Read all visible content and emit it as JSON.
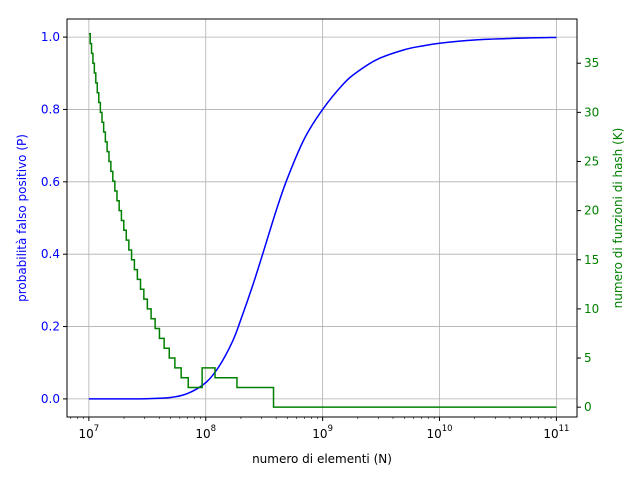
{
  "chart_data": {
    "type": "line",
    "xlabel": "numero di elementi (N)",
    "ylabel_left": "probabilità falso positivo (P)",
    "ylabel_right": "numero di funzioni di hash (K)",
    "x_scale": "log",
    "xlim": [
      6500000,
      150000000000
    ],
    "ylim_left": [
      -0.05,
      1.05
    ],
    "ylim_right": [
      -1,
      39.5
    ],
    "grid": true,
    "x_ticks": [
      {
        "value": 10000000,
        "base": "10",
        "exp": "7"
      },
      {
        "value": 100000000,
        "base": "10",
        "exp": "8"
      },
      {
        "value": 1000000000,
        "base": "10",
        "exp": "9"
      },
      {
        "value": 10000000000,
        "base": "10",
        "exp": "10"
      },
      {
        "value": 100000000000,
        "base": "10",
        "exp": "11"
      }
    ],
    "y_ticks_left": [
      {
        "value": 0.0,
        "label": "0.0"
      },
      {
        "value": 0.2,
        "label": "0.2"
      },
      {
        "value": 0.4,
        "label": "0.4"
      },
      {
        "value": 0.6,
        "label": "0.6"
      },
      {
        "value": 0.8,
        "label": "0.8"
      },
      {
        "value": 1.0,
        "label": "1.0"
      }
    ],
    "y_ticks_right": [
      {
        "value": 0,
        "label": "0"
      },
      {
        "value": 5,
        "label": "5"
      },
      {
        "value": 10,
        "label": "10"
      },
      {
        "value": 15,
        "label": "15"
      },
      {
        "value": 20,
        "label": "20"
      },
      {
        "value": 25,
        "label": "25"
      },
      {
        "value": 30,
        "label": "30"
      },
      {
        "value": 35,
        "label": "35"
      }
    ],
    "colors": {
      "left": "#0000ff",
      "right": "#008000",
      "grid": "#b0b0b0",
      "axis": "#000000"
    },
    "series": [
      {
        "axis": "left",
        "color": "#0000ff",
        "x": [
          10000000,
          20000000,
          30000000,
          50000000,
          70000000,
          100000000,
          130000000,
          170000000,
          200000000,
          250000000,
          300000000,
          400000000,
          500000000,
          700000000,
          1000000000,
          1500000000,
          2000000000,
          3000000000,
          5000000000,
          7000000000,
          10000000000,
          20000000000,
          50000000000,
          100000000000
        ],
        "y": [
          0.0,
          0.0,
          0.0005,
          0.004,
          0.015,
          0.045,
          0.09,
          0.16,
          0.22,
          0.31,
          0.39,
          0.52,
          0.61,
          0.72,
          0.8,
          0.87,
          0.905,
          0.94,
          0.965,
          0.975,
          0.983,
          0.992,
          0.997,
          0.999
        ]
      },
      {
        "axis": "right",
        "color": "#008000",
        "step": true,
        "x": [
          10000000,
          10270000,
          10540000,
          10830000,
          11140000,
          11460000,
          11800000,
          12160000,
          12540000,
          12950000,
          13380000,
          13840000,
          14330000,
          14860000,
          15420000,
          16030000,
          16680000,
          17390000,
          18160000,
          18990000,
          19900000,
          20890000,
          21980000,
          23190000,
          24520000,
          26000000,
          27660000,
          29530000,
          31650000,
          34080000,
          36880000,
          40160000,
          44050000,
          48730000,
          54430000,
          61600000,
          70800000,
          93100000,
          120000000,
          185000000,
          380000000,
          100000000000
        ],
        "y": [
          38,
          37,
          36,
          35,
          34,
          33,
          32,
          31,
          30,
          29,
          28,
          27,
          26,
          25,
          24,
          23,
          22,
          21,
          20,
          19,
          18,
          17,
          16,
          15,
          14,
          13,
          12,
          11,
          10,
          9,
          8,
          7,
          6,
          5,
          4,
          3,
          2,
          4,
          3,
          2,
          0,
          0
        ]
      }
    ]
  }
}
